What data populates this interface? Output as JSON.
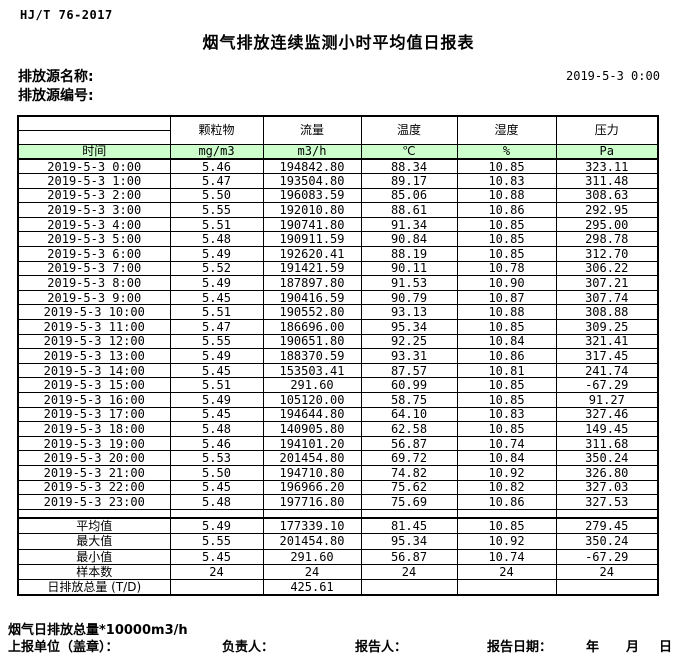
{
  "header": {
    "doc_code": "HJ/T  76-2017",
    "title": "烟气排放连续监测小时平均值日报表",
    "source_name_label": "排放源名称:",
    "source_id_label": "排放源编号:",
    "report_datetime": "2019-5-3 0:00"
  },
  "table": {
    "time_header": "时间",
    "columns": [
      {
        "name": "颗粒物",
        "unit": "mg/m3"
      },
      {
        "name": "流量",
        "unit": "m3/h"
      },
      {
        "name": "温度",
        "unit": "℃"
      },
      {
        "name": "湿度",
        "unit": "%"
      },
      {
        "name": "压力",
        "unit": "Pa"
      }
    ],
    "rows": [
      {
        "time": "2019-5-3 0:00",
        "values": [
          "5.46",
          "194842.80",
          "88.34",
          "10.85",
          "323.11"
        ]
      },
      {
        "time": "2019-5-3 1:00",
        "values": [
          "5.47",
          "193504.80",
          "89.17",
          "10.83",
          "311.48"
        ]
      },
      {
        "time": "2019-5-3 2:00",
        "values": [
          "5.50",
          "196083.59",
          "85.06",
          "10.88",
          "308.63"
        ]
      },
      {
        "time": "2019-5-3 3:00",
        "values": [
          "5.55",
          "192010.80",
          "88.61",
          "10.86",
          "292.95"
        ]
      },
      {
        "time": "2019-5-3 4:00",
        "values": [
          "5.51",
          "190741.80",
          "91.34",
          "10.85",
          "295.00"
        ]
      },
      {
        "time": "2019-5-3 5:00",
        "values": [
          "5.48",
          "190911.59",
          "90.84",
          "10.85",
          "298.78"
        ]
      },
      {
        "time": "2019-5-3 6:00",
        "values": [
          "5.49",
          "192620.41",
          "88.19",
          "10.85",
          "312.70"
        ]
      },
      {
        "time": "2019-5-3 7:00",
        "values": [
          "5.52",
          "191421.59",
          "90.11",
          "10.78",
          "306.22"
        ]
      },
      {
        "time": "2019-5-3 8:00",
        "values": [
          "5.49",
          "187897.80",
          "91.53",
          "10.90",
          "307.21"
        ]
      },
      {
        "time": "2019-5-3 9:00",
        "values": [
          "5.45",
          "190416.59",
          "90.79",
          "10.87",
          "307.74"
        ]
      },
      {
        "time": "2019-5-3 10:00",
        "values": [
          "5.51",
          "190552.80",
          "93.13",
          "10.88",
          "308.88"
        ]
      },
      {
        "time": "2019-5-3 11:00",
        "values": [
          "5.47",
          "186696.00",
          "95.34",
          "10.85",
          "309.25"
        ]
      },
      {
        "time": "2019-5-3 12:00",
        "values": [
          "5.55",
          "190651.80",
          "92.25",
          "10.84",
          "321.41"
        ]
      },
      {
        "time": "2019-5-3 13:00",
        "values": [
          "5.49",
          "188370.59",
          "93.31",
          "10.86",
          "317.45"
        ]
      },
      {
        "time": "2019-5-3 14:00",
        "values": [
          "5.45",
          "153503.41",
          "87.57",
          "10.81",
          "241.74"
        ]
      },
      {
        "time": "2019-5-3 15:00",
        "values": [
          "5.51",
          "291.60",
          "60.99",
          "10.85",
          "-67.29"
        ]
      },
      {
        "time": "2019-5-3 16:00",
        "values": [
          "5.49",
          "105120.00",
          "58.75",
          "10.85",
          "91.27"
        ]
      },
      {
        "time": "2019-5-3 17:00",
        "values": [
          "5.45",
          "194644.80",
          "64.10",
          "10.83",
          "327.46"
        ]
      },
      {
        "time": "2019-5-3 18:00",
        "values": [
          "5.48",
          "140905.80",
          "62.58",
          "10.85",
          "149.45"
        ]
      },
      {
        "time": "2019-5-3 19:00",
        "values": [
          "5.46",
          "194101.20",
          "56.87",
          "10.74",
          "311.68"
        ]
      },
      {
        "time": "2019-5-3 20:00",
        "values": [
          "5.53",
          "201454.80",
          "69.72",
          "10.84",
          "350.24"
        ]
      },
      {
        "time": "2019-5-3 21:00",
        "values": [
          "5.50",
          "194710.80",
          "74.82",
          "10.92",
          "326.80"
        ]
      },
      {
        "time": "2019-5-3 22:00",
        "values": [
          "5.45",
          "196966.20",
          "75.62",
          "10.82",
          "327.03"
        ]
      },
      {
        "time": "2019-5-3 23:00",
        "values": [
          "5.48",
          "197716.80",
          "75.69",
          "10.86",
          "327.53"
        ]
      }
    ],
    "summary": [
      {
        "label": "平均值",
        "values": [
          "5.49",
          "177339.10",
          "81.45",
          "10.85",
          "279.45"
        ]
      },
      {
        "label": "最大值",
        "values": [
          "5.55",
          "201454.80",
          "95.34",
          "10.92",
          "350.24"
        ]
      },
      {
        "label": "最小值",
        "values": [
          "5.45",
          "291.60",
          "56.87",
          "10.74",
          "-67.29"
        ]
      },
      {
        "label": "样本数",
        "values": [
          "24",
          "24",
          "24",
          "24",
          "24"
        ]
      },
      {
        "label": "日排放总量 (T/D)",
        "values": [
          "",
          "425.61",
          "",
          "",
          ""
        ]
      }
    ]
  },
  "footer": {
    "note": "烟气日排放总量*10000m3/h",
    "report_unit_label": "上报单位（盖章）：",
    "responsible_label": "负责人：",
    "reporter_label": "报告人：",
    "report_date_label": "报告日期：",
    "year_label": "年",
    "month_label": "月",
    "day_label": "日"
  },
  "colors": {
    "header_green": "#ccffcc",
    "border": "#000000"
  }
}
